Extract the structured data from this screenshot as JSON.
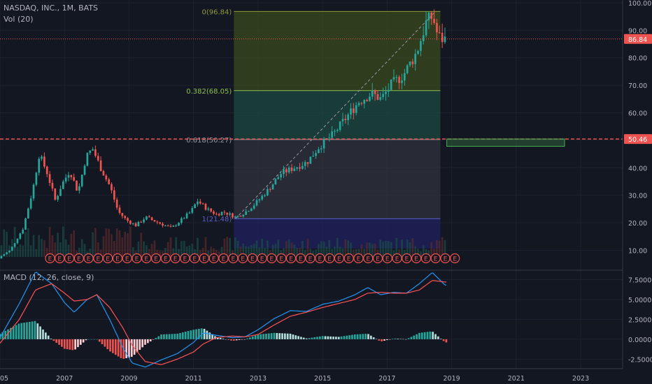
{
  "header": {
    "symbol_line": "NASDAQ, INC., 1M, BATS",
    "volume_label": "Vol (20)",
    "macd_label": "MACD (12, 26, close, 9)"
  },
  "chart_data": {
    "type": "candlestick",
    "price_axis": {
      "min": 3,
      "max": 101,
      "ticks": [
        "100.00",
        "90.00",
        "80.00",
        "70.00",
        "60.00",
        "50.00",
        "40.00",
        "30.00",
        "20.00",
        "10.00"
      ],
      "tick_values": [
        100,
        90,
        80,
        70,
        60,
        50,
        40,
        30,
        20,
        10
      ]
    },
    "time_axis": {
      "start": 2005.0,
      "end": 2024.3,
      "ticks": [
        "05",
        "2007",
        "2009",
        "2011",
        "2013",
        "2015",
        "2017",
        "2019",
        "2021",
        "2023"
      ],
      "tick_values": [
        2005,
        2007,
        2009,
        2011,
        2013,
        2015,
        2017,
        2019,
        2021,
        2023
      ]
    },
    "price_labels": [
      {
        "text": "86.84",
        "value": 86.84,
        "color": "#ef5350"
      },
      {
        "text": "50.46",
        "value": 50.46,
        "color": "#ef5350"
      }
    ],
    "fibonacci": {
      "start_year": 2012.25,
      "end_year": 2018.65,
      "levels": [
        {
          "label": "0(96.84)",
          "value": 96.84,
          "color": "#8c9a3a",
          "fill": "#3a4a1e"
        },
        {
          "label": "0.382(68.05)",
          "value": 68.05,
          "color": "#8fbf4f",
          "fill": "#1c4a40"
        },
        {
          "label": "0.618(50.27)",
          "value": 50.27,
          "color": "#9598a1",
          "fill": "#30333d"
        },
        {
          "label": "1(21.48)",
          "value": 21.48,
          "color": "#5d60c9",
          "fill": "#202160"
        }
      ]
    },
    "horizontal_lines": [
      {
        "value": 86.84,
        "style": "dotted",
        "color": "#ef5350"
      },
      {
        "value": 50.46,
        "style": "dashed",
        "color": "#ef5350"
      }
    ],
    "trend_line": {
      "from": [
        2012.3,
        21.5
      ],
      "to": [
        2018.5,
        96.8
      ]
    },
    "target_box": {
      "from_year": 2018.85,
      "to_year": 2022.5,
      "top": 50.46,
      "bottom": 47.8,
      "color": "#4caf50"
    },
    "earnings_markers": {
      "label": "E",
      "start_year": 2006.55,
      "end_year": 2019.1,
      "count": 43
    },
    "price_anchors": [
      [
        2005.0,
        7
      ],
      [
        2005.4,
        10
      ],
      [
        2005.8,
        18
      ],
      [
        2006.1,
        32
      ],
      [
        2006.3,
        45
      ],
      [
        2006.55,
        38
      ],
      [
        2006.8,
        28
      ],
      [
        2007.0,
        34
      ],
      [
        2007.25,
        39
      ],
      [
        2007.5,
        31
      ],
      [
        2007.75,
        44
      ],
      [
        2007.95,
        47
      ],
      [
        2008.2,
        40
      ],
      [
        2008.5,
        33
      ],
      [
        2008.75,
        24
      ],
      [
        2009.0,
        21
      ],
      [
        2009.3,
        19
      ],
      [
        2009.6,
        22
      ],
      [
        2010.0,
        20
      ],
      [
        2010.4,
        18
      ],
      [
        2010.7,
        21
      ],
      [
        2011.0,
        24
      ],
      [
        2011.2,
        28
      ],
      [
        2011.5,
        25
      ],
      [
        2011.8,
        23
      ],
      [
        2012.0,
        24
      ],
      [
        2012.2,
        23
      ],
      [
        2012.4,
        22
      ],
      [
        2012.7,
        24
      ],
      [
        2013.0,
        27
      ],
      [
        2013.4,
        32
      ],
      [
        2013.8,
        38
      ],
      [
        2014.2,
        40
      ],
      [
        2014.6,
        42
      ],
      [
        2015.0,
        48
      ],
      [
        2015.4,
        52
      ],
      [
        2015.8,
        58
      ],
      [
        2016.2,
        64
      ],
      [
        2016.6,
        67
      ],
      [
        2016.9,
        65
      ],
      [
        2017.2,
        70
      ],
      [
        2017.6,
        74
      ],
      [
        2018.0,
        82
      ],
      [
        2018.3,
        93
      ],
      [
        2018.5,
        95
      ],
      [
        2018.65,
        88
      ],
      [
        2018.8,
        86.8
      ]
    ],
    "macd": {
      "axis_ticks": [
        "7.5000",
        "5.0000",
        "2.5000",
        "0.0000",
        "-2.5000"
      ],
      "tick_values": [
        7.5,
        5,
        2.5,
        0,
        -2.5
      ],
      "min": -3.7,
      "max": 8.6,
      "macd_anchors": [
        [
          2005.0,
          0.2
        ],
        [
          2005.6,
          4.5
        ],
        [
          2006.1,
          8.5
        ],
        [
          2006.6,
          7.0
        ],
        [
          2007.0,
          4.6
        ],
        [
          2007.3,
          3.4
        ],
        [
          2007.7,
          5.0
        ],
        [
          2008.0,
          5.6
        ],
        [
          2008.4,
          2.5
        ],
        [
          2008.8,
          -1.0
        ],
        [
          2009.1,
          -3.0
        ],
        [
          2009.5,
          -3.5
        ],
        [
          2010.0,
          -2.6
        ],
        [
          2010.5,
          -1.8
        ],
        [
          2011.0,
          -0.4
        ],
        [
          2011.3,
          0.8
        ],
        [
          2011.7,
          0.5
        ],
        [
          2012.2,
          0.2
        ],
        [
          2012.6,
          0.3
        ],
        [
          2013.0,
          1.2
        ],
        [
          2013.5,
          2.6
        ],
        [
          2014.0,
          3.6
        ],
        [
          2014.5,
          3.5
        ],
        [
          2015.0,
          4.4
        ],
        [
          2015.5,
          4.8
        ],
        [
          2016.0,
          5.6
        ],
        [
          2016.4,
          6.5
        ],
        [
          2016.8,
          5.6
        ],
        [
          2017.2,
          5.9
        ],
        [
          2017.6,
          5.8
        ],
        [
          2018.0,
          7.0
        ],
        [
          2018.4,
          8.4
        ],
        [
          2018.8,
          6.8
        ]
      ],
      "signal_anchors": [
        [
          2005.0,
          -0.5
        ],
        [
          2005.6,
          2.5
        ],
        [
          2006.1,
          6.2
        ],
        [
          2006.6,
          7.0
        ],
        [
          2007.0,
          5.8
        ],
        [
          2007.3,
          4.8
        ],
        [
          2007.7,
          5.0
        ],
        [
          2008.0,
          5.6
        ],
        [
          2008.4,
          4.0
        ],
        [
          2008.8,
          1.5
        ],
        [
          2009.1,
          -0.8
        ],
        [
          2009.5,
          -2.8
        ],
        [
          2010.0,
          -3.2
        ],
        [
          2010.5,
          -2.5
        ],
        [
          2011.0,
          -1.6
        ],
        [
          2011.3,
          -0.6
        ],
        [
          2011.7,
          0.2
        ],
        [
          2012.2,
          0.4
        ],
        [
          2012.6,
          0.3
        ],
        [
          2013.0,
          0.6
        ],
        [
          2013.5,
          1.8
        ],
        [
          2014.0,
          2.9
        ],
        [
          2014.5,
          3.4
        ],
        [
          2015.0,
          4.0
        ],
        [
          2015.5,
          4.5
        ],
        [
          2016.0,
          5.0
        ],
        [
          2016.4,
          5.8
        ],
        [
          2016.8,
          5.9
        ],
        [
          2017.2,
          5.8
        ],
        [
          2017.6,
          5.8
        ],
        [
          2018.0,
          6.2
        ],
        [
          2018.4,
          7.4
        ],
        [
          2018.8,
          7.2
        ]
      ]
    }
  }
}
